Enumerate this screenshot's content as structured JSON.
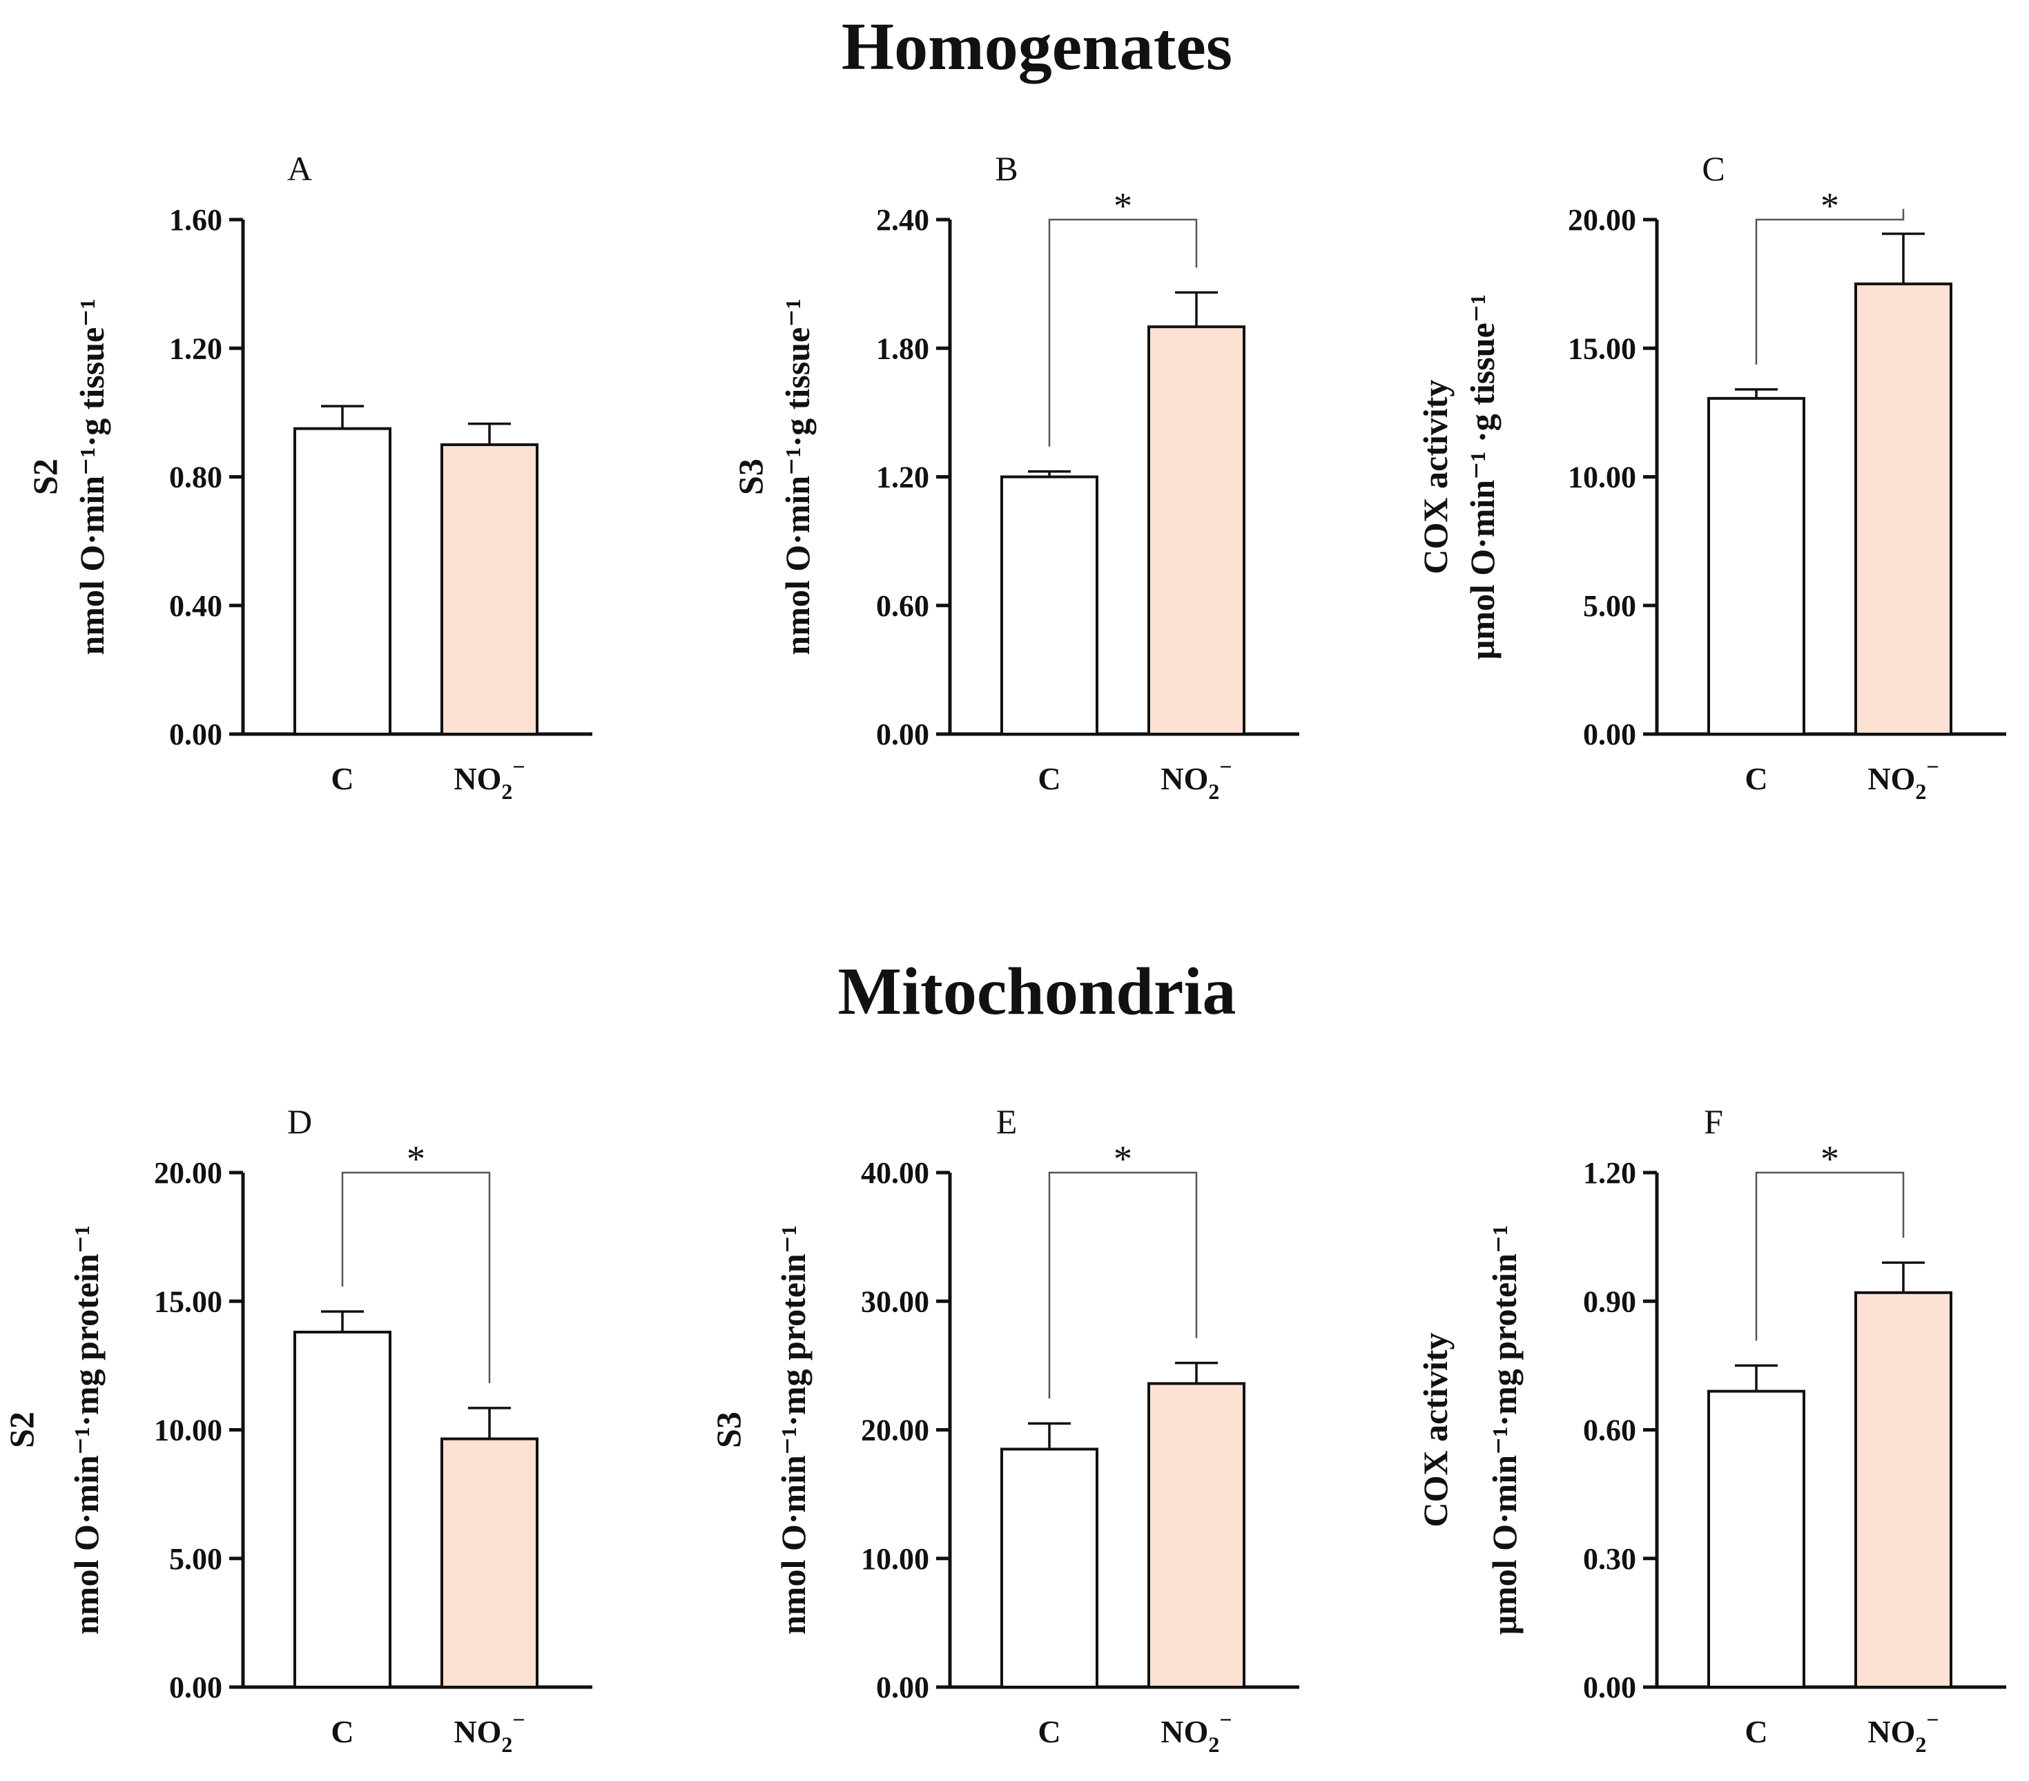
{
  "sections": [
    {
      "title": "Homogenates"
    },
    {
      "title": "Mitochondria"
    }
  ],
  "colors": {
    "control_fill": "#ffffff",
    "nitrite_fill": "#fde1d3",
    "stroke": "#111111"
  },
  "chart_data": [
    {
      "type": "bar",
      "panel": "A",
      "section": "Homogenates",
      "categories": [
        "C",
        "NO2−"
      ],
      "values": [
        0.95,
        0.9
      ],
      "errors": [
        0.07,
        0.065
      ],
      "ylim": [
        0,
        1.6
      ],
      "yticks": [
        0,
        0.4,
        0.8,
        1.2,
        1.6
      ],
      "ytick_labels": [
        "0.00",
        "0.40",
        "0.80",
        "1.20",
        "1.60"
      ],
      "ylabel_title": "S2",
      "ylabel_units": "nmol O·min⁻¹·g tissue⁻¹",
      "significance": null
    },
    {
      "type": "bar",
      "panel": "B",
      "section": "Homogenates",
      "categories": [
        "C",
        "NO2−"
      ],
      "values": [
        1.2,
        1.9
      ],
      "errors": [
        0.025,
        0.16
      ],
      "ylim": [
        0,
        2.4
      ],
      "yticks": [
        0,
        0.6,
        1.2,
        1.8,
        2.4
      ],
      "ytick_labels": [
        "0.00",
        "0.60",
        "1.20",
        "1.80",
        "2.40"
      ],
      "ylabel_title": "S3",
      "ylabel_units": "nmol O·min⁻¹·g tissue⁻¹",
      "significance": {
        "label": "*",
        "bracket_y": 2.4
      }
    },
    {
      "type": "bar",
      "panel": "C",
      "section": "Homogenates",
      "categories": [
        "C",
        "NO2−"
      ],
      "values": [
        13.05,
        17.5
      ],
      "errors": [
        0.35,
        1.95
      ],
      "ylim": [
        0,
        20
      ],
      "yticks": [
        0,
        5,
        10,
        15,
        20
      ],
      "ytick_labels": [
        "0.00",
        "5.00",
        "10.00",
        "15.00",
        "20.00"
      ],
      "ylabel_title": "COX activity",
      "ylabel_units": "μmol O·min⁻¹ ·g tissue⁻¹",
      "significance": {
        "label": "*",
        "bracket_y": 20
      }
    },
    {
      "type": "bar",
      "panel": "D",
      "section": "Mitochondria",
      "categories": [
        "C",
        "NO2−"
      ],
      "values": [
        13.8,
        9.65
      ],
      "errors": [
        0.8,
        1.2
      ],
      "ylim": [
        0,
        20
      ],
      "yticks": [
        0,
        5,
        10,
        15,
        20
      ],
      "ytick_labels": [
        "0.00",
        "5.00",
        "10.00",
        "15.00",
        "20.00"
      ],
      "ylabel_title": "S2",
      "ylabel_units": "nmol O·min⁻¹·mg protein⁻¹",
      "significance": {
        "label": "*",
        "bracket_y": 20
      }
    },
    {
      "type": "bar",
      "panel": "E",
      "section": "Mitochondria",
      "categories": [
        "C",
        "NO2−"
      ],
      "values": [
        18.5,
        23.6
      ],
      "errors": [
        2.0,
        1.6
      ],
      "ylim": [
        0,
        40
      ],
      "yticks": [
        0,
        10,
        20,
        30,
        40
      ],
      "ytick_labels": [
        "0.00",
        "10.00",
        "20.00",
        "30.00",
        "40.00"
      ],
      "ylabel_title": "S3",
      "ylabel_units": "nmol O·min⁻¹·mg protein⁻¹",
      "significance": {
        "label": "*",
        "bracket_y": 40
      }
    },
    {
      "type": "bar",
      "panel": "F",
      "section": "Mitochondria",
      "categories": [
        "C",
        "NO2−"
      ],
      "values": [
        0.69,
        0.92
      ],
      "errors": [
        0.06,
        0.07
      ],
      "ylim": [
        0,
        1.2
      ],
      "yticks": [
        0,
        0.3,
        0.6,
        0.9,
        1.2
      ],
      "ytick_labels": [
        "0.00",
        "0.30",
        "0.60",
        "0.90",
        "1.20"
      ],
      "ylabel_title": "COX activity",
      "ylabel_units": "μmol O·min⁻¹·mg protein⁻¹",
      "significance": {
        "label": "*",
        "bracket_y": 1.2
      }
    }
  ]
}
